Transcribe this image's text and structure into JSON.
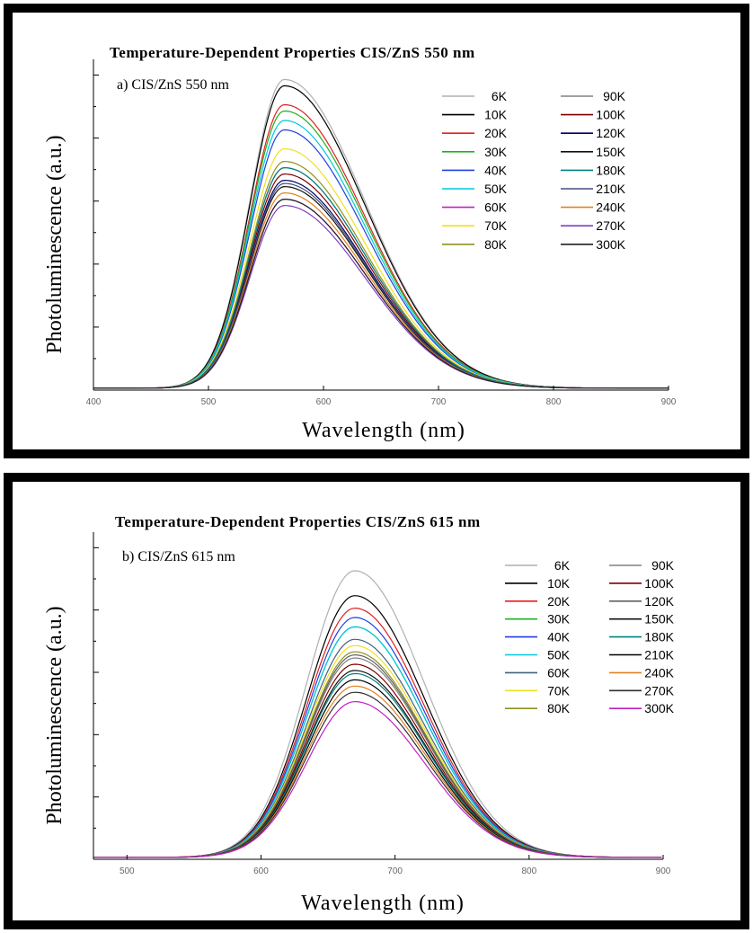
{
  "chart_data": [
    {
      "type": "line",
      "title": "Temperature-Dependent Properties CIS/ZnS 550 nm",
      "panel_label": "a) CIS/ZnS 550 nm",
      "xlabel": "Wavelength (nm)",
      "ylabel": "Photoluminescence (a.u.)",
      "xlim": [
        400,
        900
      ],
      "xticks": [
        400,
        500,
        600,
        700,
        800,
        900
      ],
      "ylim": [
        0,
        1.05
      ],
      "yticks_labeled": false,
      "grid": false,
      "legend_position": "top-right",
      "peak_nm": 566,
      "series": [
        {
          "name": "6K",
          "color": "#b0b0b0",
          "peak": 0.98
        },
        {
          "name": "10K",
          "color": "#000000",
          "peak": 0.96
        },
        {
          "name": "20K",
          "color": "#e02020",
          "peak": 0.9
        },
        {
          "name": "30K",
          "color": "#20b020",
          "peak": 0.88
        },
        {
          "name": "40K",
          "color": "#2040e0",
          "peak": 0.82
        },
        {
          "name": "50K",
          "color": "#00c8e0",
          "peak": 0.85
        },
        {
          "name": "60K",
          "color": "#c020c0",
          "peak": 0.6
        },
        {
          "name": "70K",
          "color": "#f0e020",
          "peak": 0.76
        },
        {
          "name": "80K",
          "color": "#909020",
          "peak": 0.72
        },
        {
          "name": "90K",
          "color": "#808080",
          "peak": 0.7
        },
        {
          "name": "100K",
          "color": "#800000",
          "peak": 0.68
        },
        {
          "name": "120K",
          "color": "#000060",
          "peak": 0.66
        },
        {
          "name": "150K",
          "color": "#101010",
          "peak": 0.64
        },
        {
          "name": "180K",
          "color": "#008080",
          "peak": 0.7
        },
        {
          "name": "210K",
          "color": "#405080",
          "peak": 0.65
        },
        {
          "name": "240K",
          "color": "#e08020",
          "peak": 0.62
        },
        {
          "name": "270K",
          "color": "#8040c0",
          "peak": 0.58
        },
        {
          "name": "300K",
          "color": "#202020",
          "peak": 0.6
        }
      ]
    },
    {
      "type": "line",
      "title": "Temperature-Dependent Properties CIS/ZnS 615 nm",
      "panel_label": "b) CIS/ZnS 615 nm",
      "xlabel": "Wavelength (nm)",
      "ylabel": "Photoluminescence (a.u.)",
      "xlim": [
        475,
        900
      ],
      "xticks": [
        500,
        600,
        700,
        800,
        900
      ],
      "ylim": [
        0,
        1.05
      ],
      "yticks_labeled": false,
      "grid": false,
      "legend_position": "top-right",
      "peak_nm": 670,
      "series": [
        {
          "name": "6K",
          "color": "#b0b0b0",
          "peak": 0.92
        },
        {
          "name": "10K",
          "color": "#000000",
          "peak": 0.84
        },
        {
          "name": "20K",
          "color": "#e02020",
          "peak": 0.8
        },
        {
          "name": "30K",
          "color": "#20b020",
          "peak": 0.74
        },
        {
          "name": "40K",
          "color": "#2040e0",
          "peak": 0.77
        },
        {
          "name": "50K",
          "color": "#00c8e0",
          "peak": 0.74
        },
        {
          "name": "60K",
          "color": "#406080",
          "peak": 0.7
        },
        {
          "name": "70K",
          "color": "#f0e020",
          "peak": 0.68
        },
        {
          "name": "80K",
          "color": "#909020",
          "peak": 0.66
        },
        {
          "name": "90K",
          "color": "#808080",
          "peak": 0.64
        },
        {
          "name": "100K",
          "color": "#800000",
          "peak": 0.62
        },
        {
          "name": "120K",
          "color": "#606060",
          "peak": 0.65
        },
        {
          "name": "150K",
          "color": "#101010",
          "peak": 0.6
        },
        {
          "name": "180K",
          "color": "#008080",
          "peak": 0.59
        },
        {
          "name": "210K",
          "color": "#000000",
          "peak": 0.57
        },
        {
          "name": "240K",
          "color": "#e08020",
          "peak": 0.55
        },
        {
          "name": "270K",
          "color": "#303030",
          "peak": 0.53
        },
        {
          "name": "300K",
          "color": "#c020c0",
          "peak": 0.5
        }
      ]
    }
  ]
}
